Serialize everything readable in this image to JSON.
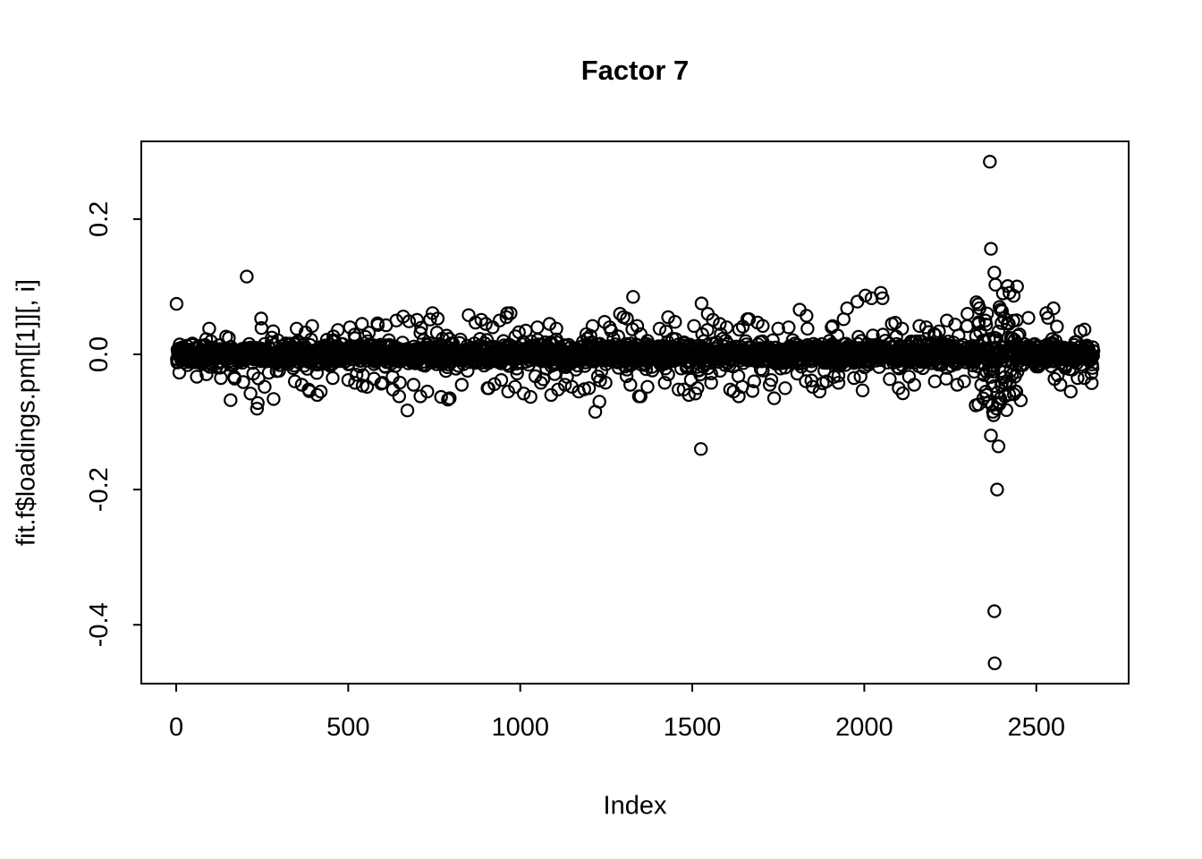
{
  "chart_data": {
    "type": "scatter",
    "title": "Factor 7",
    "xlabel": "Index",
    "ylabel": "fit.f$loadings.pm[[1]][, i]",
    "legend": "none",
    "grid": false,
    "marker": {
      "shape": "open-circle",
      "color": "#000000"
    },
    "xlim": [
      -101.4,
      2768.4
    ],
    "ylim": [
      -0.487,
      0.315
    ],
    "x_ticks": {
      "values": [
        0,
        500,
        1000,
        1500,
        2000,
        2500
      ],
      "labels": [
        "0",
        "500",
        "1000",
        "1500",
        "2000",
        "2500"
      ]
    },
    "y_ticks": {
      "values": [
        0.2,
        0.0,
        -0.2,
        -0.4
      ],
      "labels": [
        "0.2",
        "0.0",
        "-0.2",
        "-0.4"
      ]
    },
    "n_points": 2666,
    "y_min_observed": -0.457,
    "y_max_observed": 0.285,
    "band_model": {
      "seed": 7,
      "n_points": 2666,
      "x_start_index": 1,
      "sd_core": 0.0075,
      "p_mid": 0.15,
      "sd_mid": 0.018,
      "p_wide": 0.02,
      "sd_wide": 0.032,
      "band_clamp": 0.095,
      "hot_region": {
        "x_start": 2320,
        "x_end": 2445,
        "p": 0.5,
        "sd": 0.045,
        "clamp": 0.135
      }
    },
    "outliers": [
      [
        205,
        0.115
      ],
      [
        247,
        0.053
      ],
      [
        60,
        -0.033
      ],
      [
        130,
        -0.035
      ],
      [
        195,
        -0.041
      ],
      [
        216,
        -0.058
      ],
      [
        237,
        -0.072
      ],
      [
        257,
        -0.048
      ],
      [
        283,
        -0.066
      ],
      [
        345,
        -0.04
      ],
      [
        350,
        0.038
      ],
      [
        365,
        -0.045
      ],
      [
        385,
        -0.052
      ],
      [
        395,
        0.042
      ],
      [
        410,
        -0.06
      ],
      [
        420,
        -0.055
      ],
      [
        455,
        -0.035
      ],
      [
        470,
        0.036
      ],
      [
        500,
        -0.038
      ],
      [
        505,
        0.04
      ],
      [
        520,
        -0.042
      ],
      [
        540,
        0.045
      ],
      [
        555,
        -0.048
      ],
      [
        560,
        0.032
      ],
      [
        575,
        -0.036
      ],
      [
        585,
        0.046
      ],
      [
        600,
        -0.042
      ],
      [
        610,
        0.043
      ],
      [
        630,
        -0.052
      ],
      [
        640,
        0.05
      ],
      [
        648,
        -0.062
      ],
      [
        660,
        0.056
      ],
      [
        672,
        -0.083
      ],
      [
        690,
        -0.045
      ],
      [
        700,
        0.051
      ],
      [
        710,
        -0.062
      ],
      [
        730,
        -0.055
      ],
      [
        745,
        0.061
      ],
      [
        760,
        0.053
      ],
      [
        770,
        -0.063
      ],
      [
        790,
        -0.067
      ],
      [
        795,
        -0.065
      ],
      [
        830,
        -0.045
      ],
      [
        850,
        0.058
      ],
      [
        870,
        0.047
      ],
      [
        900,
        0.045
      ],
      [
        905,
        -0.05
      ],
      [
        920,
        0.04
      ],
      [
        925,
        -0.044
      ],
      [
        940,
        0.05
      ],
      [
        945,
        -0.038
      ],
      [
        960,
        0.055
      ],
      [
        965,
        -0.055
      ],
      [
        985,
        -0.048
      ],
      [
        1010,
        -0.058
      ],
      [
        1030,
        -0.063
      ],
      [
        1050,
        0.04
      ],
      [
        1060,
        -0.042
      ],
      [
        1085,
        0.045
      ],
      [
        1090,
        -0.06
      ],
      [
        1105,
        0.038
      ],
      [
        1110,
        -0.052
      ],
      [
        1130,
        -0.045
      ],
      [
        1150,
        -0.048
      ],
      [
        1170,
        -0.055
      ],
      [
        1200,
        -0.05
      ],
      [
        1210,
        0.042
      ],
      [
        1218,
        -0.085
      ],
      [
        1230,
        -0.07
      ],
      [
        1245,
        0.048
      ],
      [
        1260,
        0.04
      ],
      [
        1290,
        0.06
      ],
      [
        1300,
        0.055
      ],
      [
        1310,
        0.053
      ],
      [
        1320,
        -0.045
      ],
      [
        1328,
        0.085
      ],
      [
        1340,
        0.042
      ],
      [
        1345,
        -0.062
      ],
      [
        1350,
        -0.062
      ],
      [
        1370,
        -0.048
      ],
      [
        1405,
        0.038
      ],
      [
        1420,
        -0.042
      ],
      [
        1430,
        0.055
      ],
      [
        1450,
        0.048
      ],
      [
        1460,
        -0.052
      ],
      [
        1475,
        -0.052
      ],
      [
        1490,
        -0.06
      ],
      [
        1505,
        0.042
      ],
      [
        1515,
        -0.05
      ],
      [
        1525,
        -0.14
      ],
      [
        1545,
        0.06
      ],
      [
        1555,
        -0.042
      ],
      [
        1560,
        0.051
      ],
      [
        1580,
        0.045
      ],
      [
        1600,
        0.04
      ],
      [
        1610,
        -0.052
      ],
      [
        1620,
        -0.055
      ],
      [
        1635,
        -0.062
      ],
      [
        1645,
        -0.048
      ],
      [
        1660,
        0.052
      ],
      [
        1665,
        0.052
      ],
      [
        1680,
        -0.04
      ],
      [
        1690,
        0.047
      ],
      [
        1705,
        0.042
      ],
      [
        1725,
        -0.045
      ],
      [
        1730,
        -0.038
      ],
      [
        1750,
        0.038
      ],
      [
        1770,
        -0.05
      ],
      [
        1780,
        0.04
      ],
      [
        1832,
        0.057
      ],
      [
        1835,
        0.038
      ],
      [
        1850,
        -0.048
      ],
      [
        1870,
        -0.055
      ],
      [
        1890,
        -0.04
      ],
      [
        1905,
        0.04
      ],
      [
        1925,
        -0.042
      ],
      [
        1940,
        0.052
      ],
      [
        1950,
        0.068
      ],
      [
        1970,
        -0.035
      ],
      [
        1980,
        0.078
      ],
      [
        2003,
        0.087
      ],
      [
        2021,
        0.083
      ],
      [
        2048,
        0.091
      ],
      [
        2053,
        0.083
      ],
      [
        2080,
        0.045
      ],
      [
        2100,
        -0.05
      ],
      [
        2110,
        0.038
      ],
      [
        2130,
        -0.033
      ],
      [
        2145,
        -0.045
      ],
      [
        2160,
        0.042
      ],
      [
        2180,
        0.04
      ],
      [
        2205,
        -0.04
      ],
      [
        2217,
        0.034
      ],
      [
        2240,
        0.05
      ],
      [
        2264,
        0.044
      ],
      [
        2270,
        -0.045
      ],
      [
        2290,
        -0.04
      ],
      [
        2300,
        0.06
      ],
      [
        2331,
        0.074
      ],
      [
        2340,
        -0.045
      ],
      [
        2352,
        0.05
      ],
      [
        2355,
        -0.06
      ],
      [
        2365,
        0.285
      ],
      [
        2368,
        0.156
      ],
      [
        2368,
        -0.12
      ],
      [
        2372,
        -0.075
      ],
      [
        2374,
        -0.085
      ],
      [
        2376,
        -0.09
      ],
      [
        2378,
        0.121
      ],
      [
        2378,
        -0.38
      ],
      [
        2379,
        -0.457
      ],
      [
        2381,
        0.103
      ],
      [
        2386,
        -0.2
      ],
      [
        2390,
        -0.136
      ],
      [
        2393,
        0.07
      ],
      [
        2396,
        0.066
      ],
      [
        2400,
        0.064
      ],
      [
        2417,
        0.101
      ],
      [
        2420,
        0.045
      ],
      [
        2422,
        0.091
      ],
      [
        2440,
        -0.055
      ],
      [
        2455,
        -0.068
      ],
      [
        2477,
        0.054
      ],
      [
        2529,
        0.061
      ],
      [
        2534,
        0.054
      ],
      [
        2550,
        0.068
      ],
      [
        2560,
        0.041
      ],
      [
        2570,
        -0.045
      ],
      [
        2600,
        -0.055
      ],
      [
        2620,
        -0.035
      ],
      [
        2628,
        0.034
      ],
      [
        2640,
        -0.035
      ],
      [
        2660,
        -0.028
      ]
    ]
  }
}
